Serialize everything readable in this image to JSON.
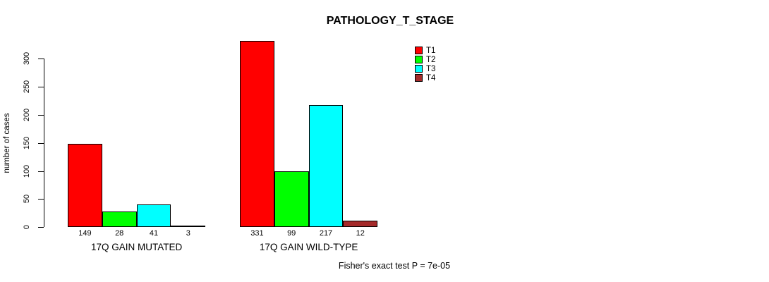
{
  "chart_data": {
    "type": "bar",
    "title": "PATHOLOGY_T_STAGE",
    "xlabel": "",
    "ylabel": "number of cases",
    "categories": [
      "17Q GAIN MUTATED",
      "17Q GAIN WILD-TYPE"
    ],
    "series": [
      {
        "name": "T1",
        "color": "#FF0000",
        "values": [
          149,
          331
        ]
      },
      {
        "name": "T2",
        "color": "#00FF00",
        "values": [
          28,
          99
        ]
      },
      {
        "name": "T3",
        "color": "#00FFFF",
        "values": [
          41,
          217
        ]
      },
      {
        "name": "T4",
        "color": "#A52A2A",
        "values": [
          3,
          12
        ]
      }
    ],
    "yticks": [
      0,
      50,
      100,
      150,
      200,
      250,
      300
    ],
    "ylim": [
      0,
      331
    ],
    "grid": false,
    "bar_value_labels_shown": true,
    "legend_position": "top-right",
    "annotation": "Fisher's exact test P = 7e-05"
  }
}
